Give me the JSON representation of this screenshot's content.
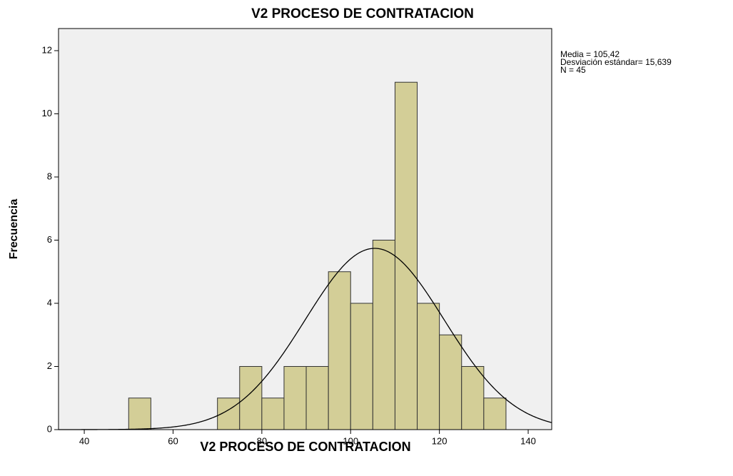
{
  "chart_data": {
    "type": "histogram",
    "title": "V2 PROCESO DE CONTRATACION",
    "x_label": "V2 PROCESO DE CONTRATACION",
    "y_label": "Frecuencia",
    "bins": [
      50,
      55,
      60,
      65,
      70,
      75,
      80,
      85,
      90,
      95,
      100,
      105,
      110,
      115,
      120,
      125,
      130,
      135
    ],
    "values": [
      1,
      0,
      0,
      0,
      1,
      2,
      1,
      2,
      2,
      5,
      4,
      6,
      11,
      4,
      3,
      2,
      1
    ],
    "color": "#d3ce97",
    "xlim": [
      34.2,
      145.3
    ],
    "xticks": [
      40,
      60,
      80,
      100,
      120,
      140
    ],
    "ylim": [
      0,
      12.7
    ],
    "yticks": [
      0,
      2,
      4,
      6,
      8,
      10,
      12
    ],
    "stats": {
      "values": [
        105.42,
        15.639,
        45
      ],
      "value_labels": [
        "Media = 105,42",
        "Desviación estándar= 15,639",
        "N = 45"
      ]
    }
  }
}
